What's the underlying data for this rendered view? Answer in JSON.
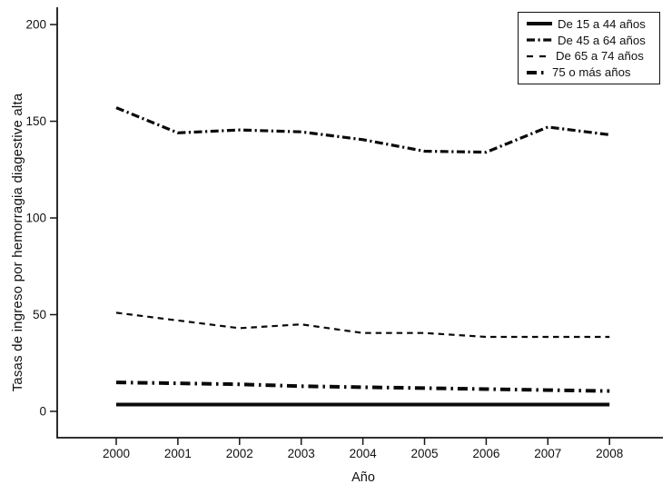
{
  "figure": {
    "background_color": "#ffffff",
    "ink_color": "#000000"
  },
  "chart_data": {
    "type": "line",
    "title": "",
    "xlabel": "Año",
    "ylabel": "Tasas de ingreso por hemorragia diagestive alta",
    "x": [
      2000,
      2001,
      2002,
      2003,
      2004,
      2005,
      2006,
      2007,
      2008
    ],
    "x_ticks": [
      "2000",
      "2001",
      "2002",
      "2003",
      "2004",
      "2005",
      "2006",
      "2007",
      "2008"
    ],
    "y_ticks": [
      "0",
      "50",
      "100",
      "150",
      "200"
    ],
    "ylim": [
      0,
      200
    ],
    "grid": false,
    "legend_position": "top-right",
    "series": [
      {
        "name": "De 15 a 44 años",
        "style": "solid",
        "values": [
          3.5,
          3.5,
          3.5,
          3.5,
          3.5,
          3.5,
          3.5,
          3.5,
          3.5
        ]
      },
      {
        "name": "De 45 a 64 años",
        "style": "dashdot",
        "values": [
          157,
          144,
          145.5,
          144.5,
          140.5,
          134.5,
          134,
          147,
          143
        ]
      },
      {
        "name": "De 65 a 74 años",
        "style": "dashed",
        "values": [
          51,
          47,
          43,
          45,
          40.5,
          40.5,
          38.5,
          38.5,
          38.5
        ]
      },
      {
        "name": "75 o más años",
        "style": "longdashdot",
        "values": [
          15,
          14.5,
          14,
          13,
          12.5,
          12,
          11.5,
          11,
          10.5
        ]
      }
    ]
  }
}
